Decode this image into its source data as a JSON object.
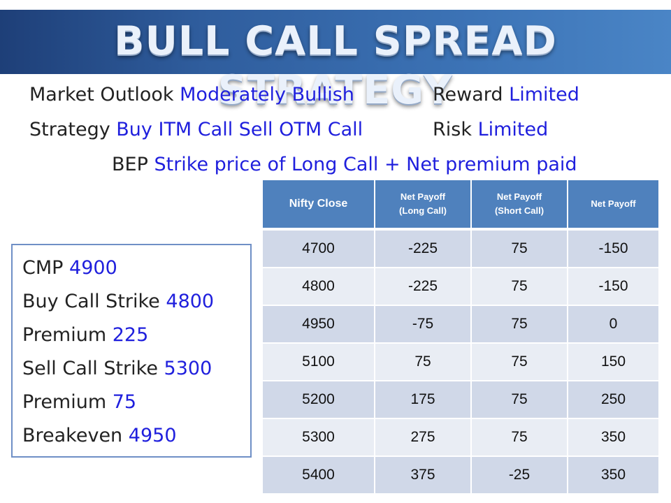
{
  "title": "BULL CALL SPREAD STRATEGY",
  "info": {
    "market_outlook": {
      "label": "Market Outlook",
      "value": "Moderately Bullish"
    },
    "reward": {
      "label": "Reward",
      "value": "Limited"
    },
    "strategy": {
      "label": "Strategy",
      "value": "Buy ITM Call Sell OTM Call"
    },
    "risk": {
      "label": "Risk",
      "value": "Limited"
    },
    "bep": {
      "label": "BEP",
      "value": "Strike price of Long Call + Net premium paid"
    }
  },
  "parameters": {
    "cmp": {
      "label": "CMP",
      "value": "4900"
    },
    "buy_call_strike": {
      "label": "Buy Call Strike",
      "value": "4800"
    },
    "buy_premium": {
      "label": "Premium",
      "value": "225"
    },
    "sell_call_strike": {
      "label": "Sell Call Strike",
      "value": "5300"
    },
    "sell_premium": {
      "label": "Premium",
      "value": "75"
    },
    "breakeven": {
      "label": "Breakeven",
      "value": "4950"
    }
  },
  "table": {
    "headers": {
      "nifty_close": "Nifty Close",
      "long_call": {
        "line1": "Net Payoff",
        "line2": "(Long Call)"
      },
      "short_call": {
        "line1": "Net Payoff",
        "line2": "(Short Call)"
      },
      "net_payoff": "Net Payoff"
    },
    "rows": [
      [
        "4700",
        "-225",
        "75",
        "-150"
      ],
      [
        "4800",
        "-225",
        "75",
        "-150"
      ],
      [
        "4950",
        "-75",
        "75",
        "0"
      ],
      [
        "5100",
        "75",
        "75",
        "150"
      ],
      [
        "5200",
        "175",
        "75",
        "250"
      ],
      [
        "5300",
        "275",
        "75",
        "350"
      ],
      [
        "5400",
        "375",
        "-25",
        "350"
      ]
    ]
  },
  "colors": {
    "banner": "#2f5d9d",
    "value_text": "#1f1fdd",
    "table_header": "#4f81bd",
    "row_dark": "#d0d8e8",
    "row_light": "#e9edf4"
  }
}
